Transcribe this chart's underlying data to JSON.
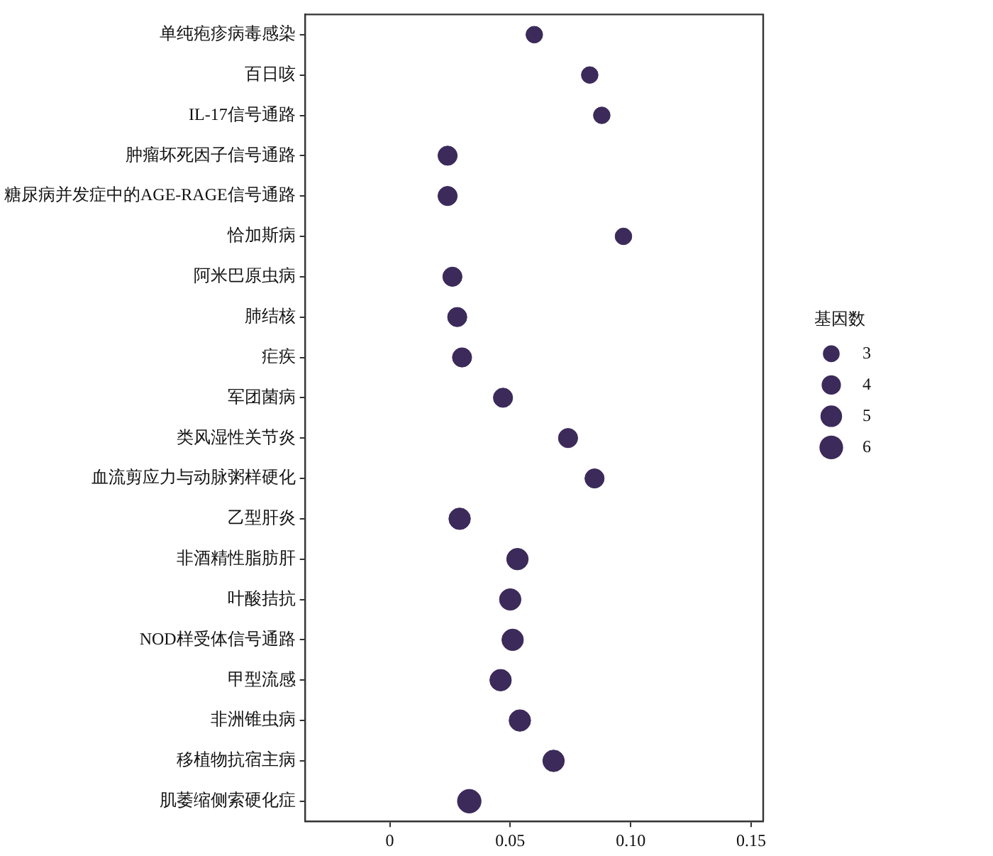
{
  "chart_data": {
    "type": "bubble",
    "orientation": "horizontal",
    "categories": [
      "单纯疱疹病毒感染",
      "百日咳",
      "IL-17信号通路",
      "肿瘤坏死因子信号通路",
      "糖尿病并发症中的AGE-RAGE信号通路",
      "恰加斯病",
      "阿米巴原虫病",
      "肺结核",
      "疟疾",
      "军团菌病",
      "类风湿性关节炎",
      "血流剪应力与动脉粥样硬化",
      "乙型肝炎",
      "非酒精性脂肪肝",
      "叶酸拮抗",
      "NOD样受体信号通路",
      "甲型流感",
      "非洲锥虫病",
      "移植物抗宿主病",
      "肌萎缩侧索硬化症"
    ],
    "series": [
      {
        "color": "#3b2a5a",
        "values": [
          0.06,
          0.083,
          0.088,
          0.024,
          0.024,
          0.097,
          0.026,
          0.028,
          0.03,
          0.047,
          0.074,
          0.085,
          0.029,
          0.053,
          0.05,
          0.051,
          0.046,
          0.054,
          0.068,
          0.033
        ],
        "sizes": [
          3,
          3,
          3,
          4,
          4,
          3,
          4,
          4,
          4,
          4,
          4,
          4,
          5,
          5,
          5,
          5,
          5,
          5,
          5,
          6
        ]
      }
    ],
    "xlim": [
      -0.035,
      0.155
    ],
    "xticks": [
      {
        "value": 0,
        "label": "0"
      },
      0.05,
      {
        "value": 0.1,
        "label": "0.10"
      },
      0.15
    ],
    "legend_title": "基因数",
    "size_legend": [
      3,
      4,
      5,
      6
    ]
  }
}
